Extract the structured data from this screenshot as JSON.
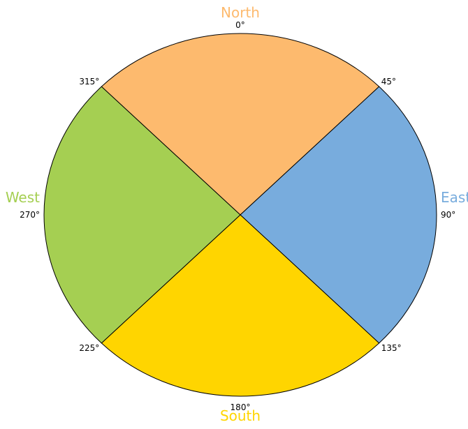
{
  "directions": [
    {
      "name": "North",
      "color": "#fdba6e",
      "from": 315,
      "to": 45
    },
    {
      "name": "East",
      "color": "#78acdd",
      "from": 45,
      "to": 135
    },
    {
      "name": "South",
      "color": "#ffd500",
      "from": 135,
      "to": 225
    },
    {
      "name": "West",
      "color": "#a5cf52",
      "from": 225,
      "to": 315
    }
  ],
  "angles": [
    {
      "value": 0,
      "label": "0°"
    },
    {
      "value": 45,
      "label": "45°"
    },
    {
      "value": 90,
      "label": "90°"
    },
    {
      "value": 135,
      "label": "135°"
    },
    {
      "value": 180,
      "label": "180°"
    },
    {
      "value": 225,
      "label": "225°"
    },
    {
      "value": 270,
      "label": "270°"
    },
    {
      "value": 315,
      "label": "315°"
    }
  ]
}
